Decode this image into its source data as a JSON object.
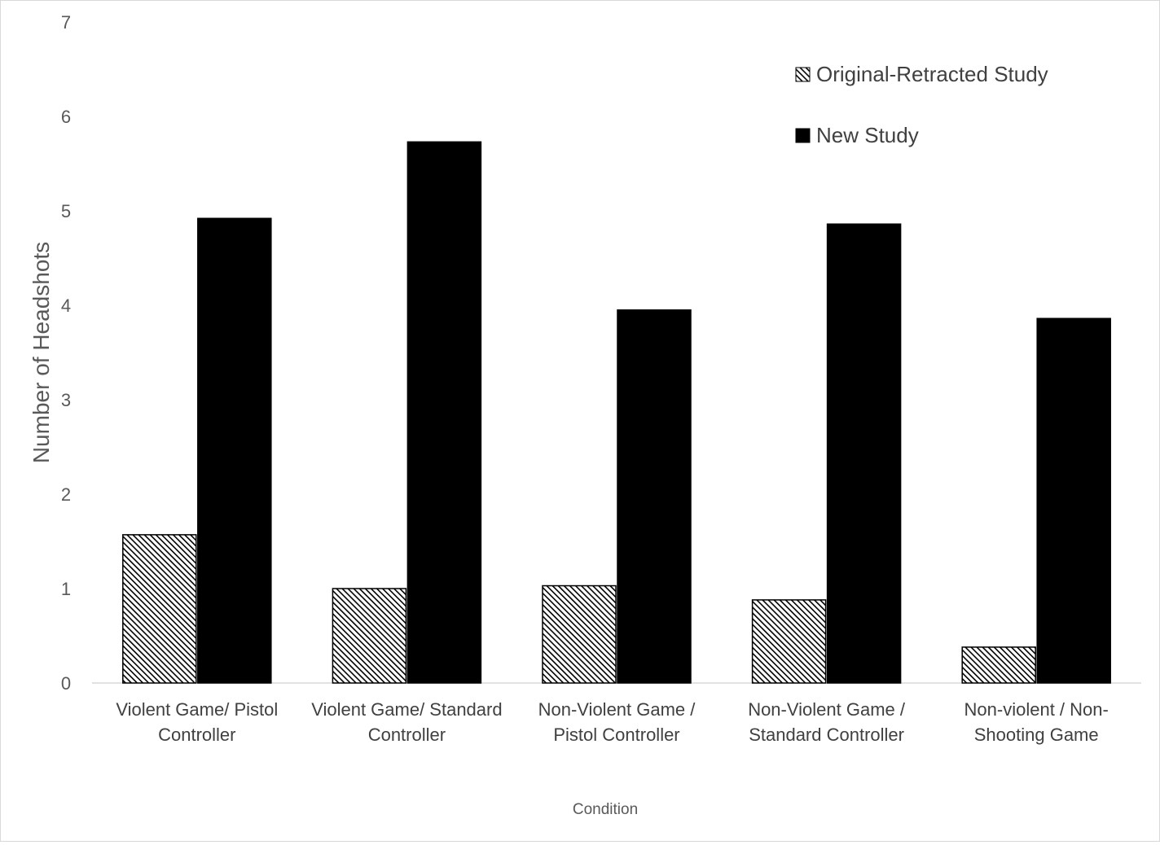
{
  "chart_data": {
    "type": "bar",
    "categories": [
      [
        "Violent Game/ Pistol",
        "Controller"
      ],
      [
        "Violent Game/ Standard",
        "Controller"
      ],
      [
        "Non-Violent Game /",
        "Pistol Controller"
      ],
      [
        "Non-Violent Game /",
        "Standard Controller"
      ],
      [
        "Non-violent / Non-",
        "Shooting Game"
      ]
    ],
    "series": [
      {
        "name": "Original-Retracted Study",
        "values": [
          1.57,
          1.0,
          1.03,
          0.88,
          0.38
        ],
        "fill": "hatch",
        "color": "#000000"
      },
      {
        "name": "New Study",
        "values": [
          4.92,
          5.73,
          3.95,
          4.86,
          3.86
        ],
        "fill": "solid",
        "color": "#000000"
      }
    ],
    "title": "",
    "xlabel": "Condition",
    "ylabel": "Number of Headshots",
    "ylim": [
      0,
      7
    ],
    "yticks": [
      0,
      1,
      2,
      3,
      4,
      5,
      6,
      7
    ],
    "grid": false,
    "legend_position": "top-right"
  }
}
